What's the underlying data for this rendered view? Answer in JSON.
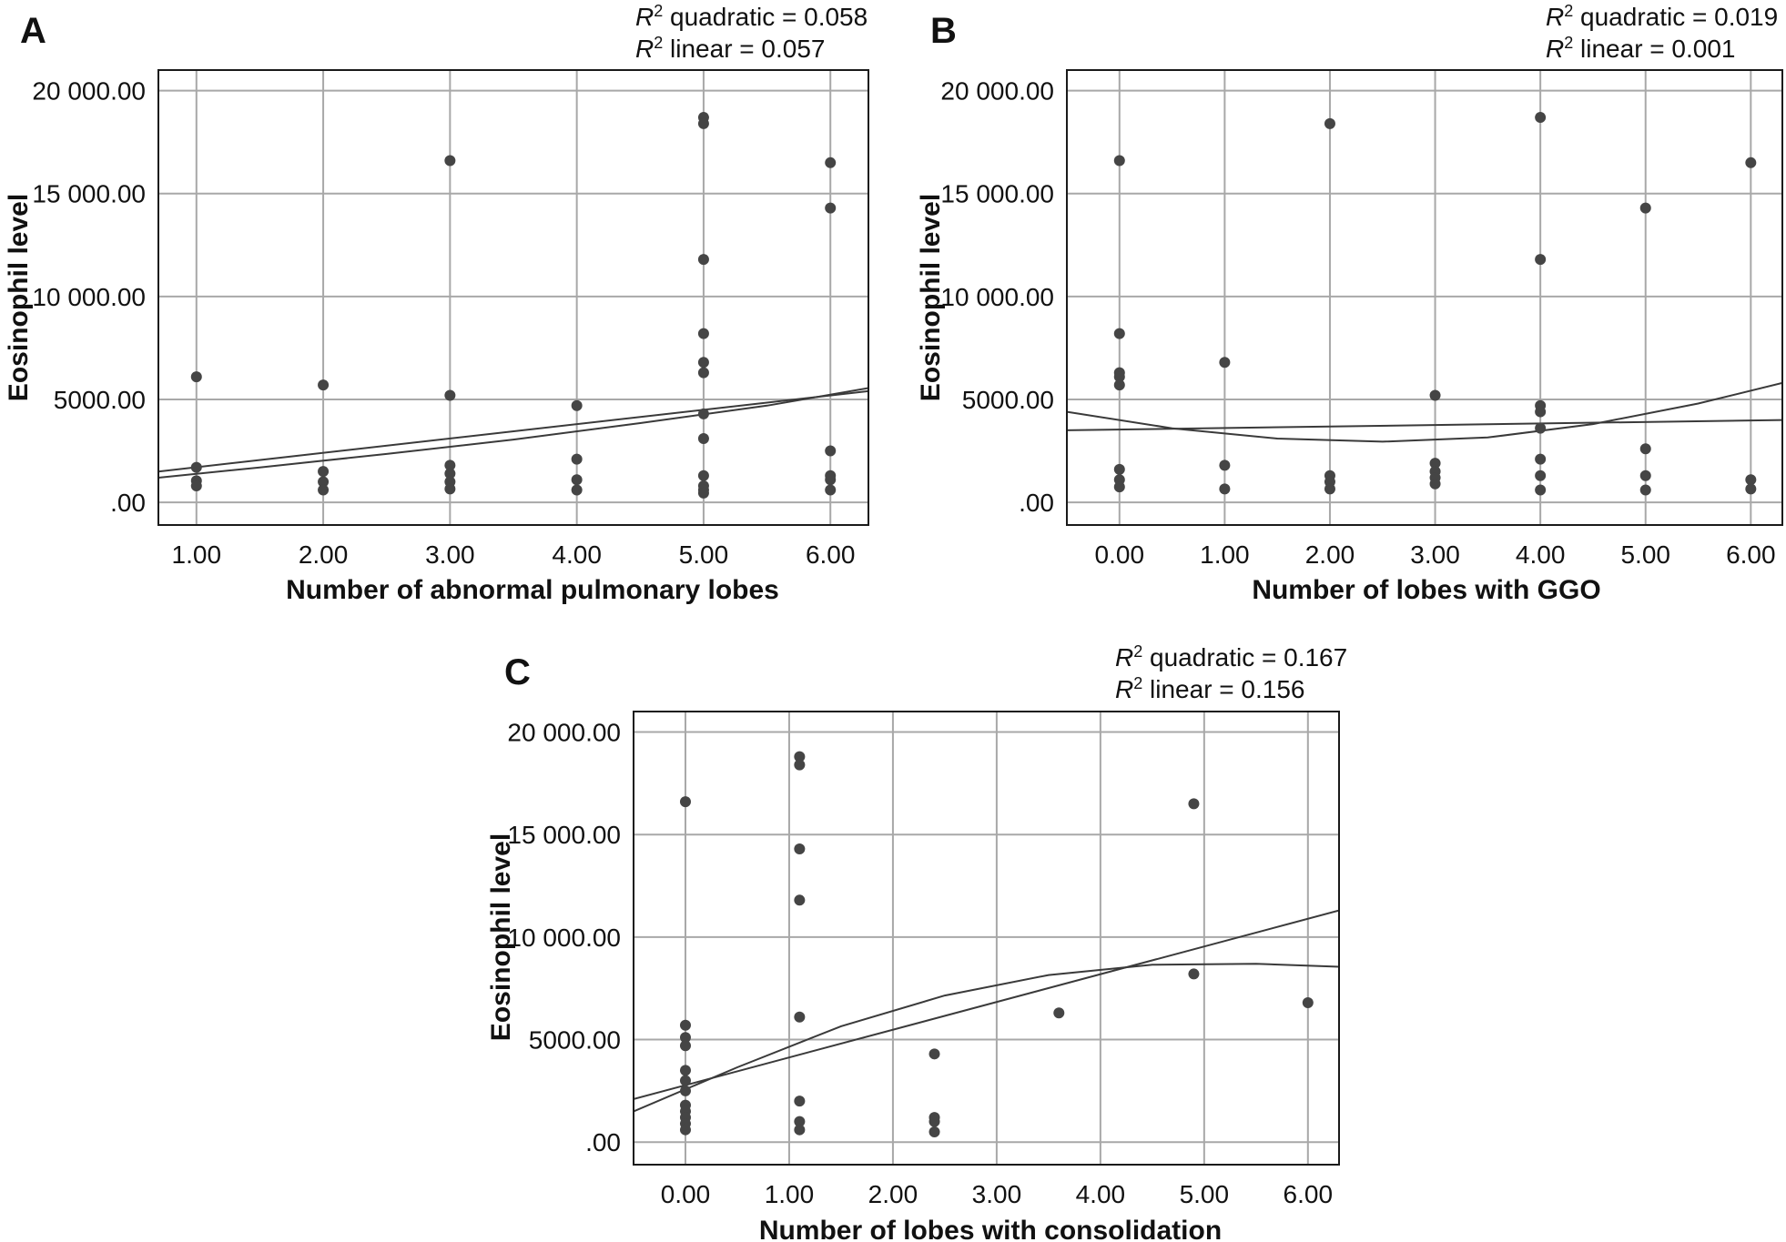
{
  "chart_data": [
    {
      "type": "scatter",
      "panel_label": "A",
      "xlabel": "Number of abnormal pulmonary lobes",
      "ylabel": "Eosinophil level",
      "xlim": [
        0.7,
        6.3
      ],
      "ylim": [
        -1100,
        21000
      ],
      "xticks": [
        1,
        2,
        3,
        4,
        5,
        6
      ],
      "xtick_labels": [
        "1.00",
        "2.00",
        "3.00",
        "4.00",
        "5.00",
        "6.00"
      ],
      "yticks": [
        0,
        5000,
        10000,
        15000,
        20000
      ],
      "ytick_labels": [
        ".00",
        "5000.00",
        "10 000.00",
        "15 000.00",
        "20 000.00"
      ],
      "grid": true,
      "annotations": [
        {
          "prefix": "R",
          "sup": "2",
          "text": " quadratic = 0.058"
        },
        {
          "prefix": "R",
          "sup": "2",
          "text": " linear = 0.057"
        }
      ],
      "points": [
        [
          1,
          6100
        ],
        [
          1,
          1700
        ],
        [
          1,
          1050
        ],
        [
          1,
          800
        ],
        [
          2,
          5700
        ],
        [
          2,
          1500
        ],
        [
          2,
          1000
        ],
        [
          2,
          600
        ],
        [
          3,
          16600
        ],
        [
          3,
          5200
        ],
        [
          3,
          1800
        ],
        [
          3,
          1400
        ],
        [
          3,
          1000
        ],
        [
          3,
          650
        ],
        [
          4,
          4700
        ],
        [
          4,
          2100
        ],
        [
          4,
          1100
        ],
        [
          4,
          600
        ],
        [
          5,
          18700
        ],
        [
          5,
          18400
        ],
        [
          5,
          11800
        ],
        [
          5,
          8200
        ],
        [
          5,
          6800
        ],
        [
          5,
          6300
        ],
        [
          5,
          4300
        ],
        [
          5,
          3100
        ],
        [
          5,
          1300
        ],
        [
          5,
          800
        ],
        [
          5,
          600
        ],
        [
          5,
          450
        ],
        [
          6,
          16500
        ],
        [
          6,
          14300
        ],
        [
          6,
          2500
        ],
        [
          6,
          1300
        ],
        [
          6,
          1100
        ],
        [
          6,
          600
        ]
      ],
      "fit_lines": [
        {
          "name": "linear",
          "x": [
            0.7,
            6.3
          ],
          "y": [
            1500,
            5400
          ]
        },
        {
          "name": "quadratic",
          "x": [
            0.7,
            1.5,
            2.5,
            3.5,
            4.5,
            5.5,
            6.3
          ],
          "y": [
            1200,
            1700,
            2350,
            3050,
            3850,
            4700,
            5550
          ]
        }
      ]
    },
    {
      "type": "scatter",
      "panel_label": "B",
      "xlabel": "Number of lobes with GGO",
      "ylabel": "Eosinophil level",
      "xlim": [
        -0.5,
        6.3
      ],
      "ylim": [
        -1100,
        21000
      ],
      "xticks": [
        0,
        1,
        2,
        3,
        4,
        5,
        6
      ],
      "xtick_labels": [
        "0.00",
        "1.00",
        "2.00",
        "3.00",
        "4.00",
        "5.00",
        "6.00"
      ],
      "yticks": [
        0,
        5000,
        10000,
        15000,
        20000
      ],
      "ytick_labels": [
        ".00",
        "5000.00",
        "10 000.00",
        "15 000.00",
        "20 000.00"
      ],
      "grid": true,
      "annotations": [
        {
          "prefix": "R",
          "sup": "2",
          "text": " quadratic = 0.019"
        },
        {
          "prefix": "R",
          "sup": "2",
          "text": " linear = 0.001"
        }
      ],
      "points": [
        [
          0,
          16600
        ],
        [
          0,
          8200
        ],
        [
          0,
          6300
        ],
        [
          0,
          6100
        ],
        [
          0,
          5700
        ],
        [
          0,
          1600
        ],
        [
          0,
          1100
        ],
        [
          0,
          750
        ],
        [
          1,
          6800
        ],
        [
          1,
          1800
        ],
        [
          1,
          650
        ],
        [
          2,
          18400
        ],
        [
          2,
          1300
        ],
        [
          2,
          1000
        ],
        [
          2,
          650
        ],
        [
          3,
          5200
        ],
        [
          3,
          1900
        ],
        [
          3,
          1500
        ],
        [
          3,
          1200
        ],
        [
          3,
          900
        ],
        [
          4,
          18700
        ],
        [
          4,
          11800
        ],
        [
          4,
          4700
        ],
        [
          4,
          4400
        ],
        [
          4,
          3600
        ],
        [
          4,
          2100
        ],
        [
          4,
          1300
        ],
        [
          4,
          600
        ],
        [
          5,
          14300
        ],
        [
          5,
          2600
        ],
        [
          5,
          1300
        ],
        [
          5,
          600
        ],
        [
          6,
          16500
        ],
        [
          6,
          1100
        ],
        [
          6,
          650
        ]
      ],
      "fit_lines": [
        {
          "name": "linear",
          "x": [
            -0.5,
            6.3
          ],
          "y": [
            3500,
            4000
          ]
        },
        {
          "name": "quadratic",
          "x": [
            -0.5,
            0.5,
            1.5,
            2.5,
            3.5,
            4.5,
            5.5,
            6.3
          ],
          "y": [
            4400,
            3600,
            3100,
            2950,
            3150,
            3800,
            4800,
            5800
          ]
        }
      ]
    },
    {
      "type": "scatter",
      "panel_label": "C",
      "xlabel": "Number of lobes with consolidation",
      "ylabel": "Eosinophil level",
      "xlim": [
        -0.5,
        6.3
      ],
      "ylim": [
        -1100,
        21000
      ],
      "xticks": [
        0,
        1,
        2,
        3,
        4,
        5,
        6
      ],
      "xtick_labels": [
        "0.00",
        "1.00",
        "2.00",
        "3.00",
        "4.00",
        "5.00",
        "6.00"
      ],
      "yticks": [
        0,
        5000,
        10000,
        15000,
        20000
      ],
      "ytick_labels": [
        ".00",
        "5000.00",
        "10 000.00",
        "15 000.00",
        "20 000.00"
      ],
      "grid": true,
      "annotations": [
        {
          "prefix": "R",
          "sup": "2",
          "text": " quadratic = 0.167"
        },
        {
          "prefix": "R",
          "sup": "2",
          "text": " linear = 0.156"
        }
      ],
      "points": [
        [
          0,
          16600
        ],
        [
          0,
          5700
        ],
        [
          0,
          5100
        ],
        [
          0,
          4700
        ],
        [
          0,
          3500
        ],
        [
          0,
          3000
        ],
        [
          0,
          2500
        ],
        [
          0,
          1800
        ],
        [
          0,
          1500
        ],
        [
          0,
          1200
        ],
        [
          0,
          900
        ],
        [
          0,
          600
        ],
        [
          1.1,
          18800
        ],
        [
          1.1,
          18400
        ],
        [
          1.1,
          14300
        ],
        [
          1.1,
          11800
        ],
        [
          1.1,
          6100
        ],
        [
          1.1,
          2000
        ],
        [
          1.1,
          1000
        ],
        [
          1.1,
          600
        ],
        [
          2.4,
          4300
        ],
        [
          2.4,
          1200
        ],
        [
          2.4,
          1000
        ],
        [
          2.4,
          500
        ],
        [
          3.6,
          6300
        ],
        [
          4.9,
          16500
        ],
        [
          4.9,
          8200
        ],
        [
          6,
          6800
        ]
      ],
      "fit_lines": [
        {
          "name": "linear",
          "x": [
            -0.5,
            6.3
          ],
          "y": [
            2100,
            11300
          ]
        },
        {
          "name": "quadratic",
          "x": [
            -0.5,
            0.5,
            1.5,
            2.5,
            3.5,
            4.5,
            5.5,
            6.3
          ],
          "y": [
            1500,
            3650,
            5650,
            7150,
            8150,
            8650,
            8700,
            8550
          ]
        }
      ]
    }
  ]
}
